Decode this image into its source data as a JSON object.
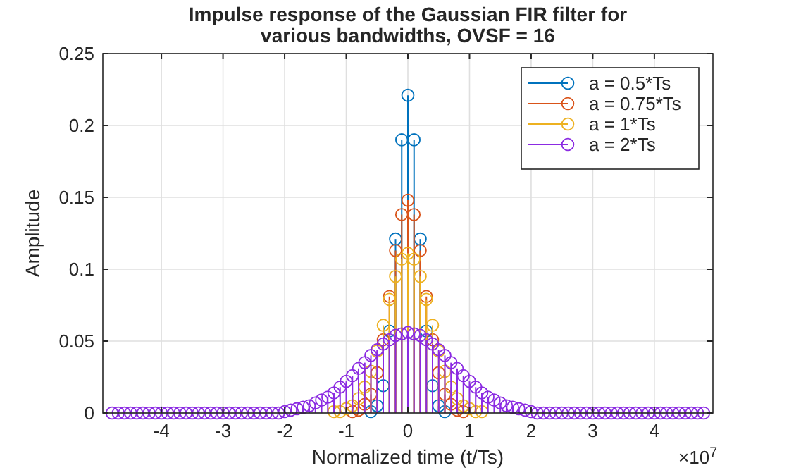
{
  "chart_data": {
    "type": "lollipop",
    "title": "Impulse response of the Gaussian FIR filter for various bandwidths, OVSF = 16",
    "xlabel": "Normalized time (t/Ts)",
    "ylabel": "Amplitude",
    "annotations": [
      "×10$^{7}$"
    ],
    "x": [
      -4.8,
      -4.7,
      -4.6,
      -4.5,
      -4.4,
      -4.3,
      -4.2,
      -4.1,
      -4,
      -3.9,
      -3.8,
      -3.7,
      -3.6,
      -3.5,
      -3.4,
      -3.3,
      -3.2,
      -3.1,
      -3,
      -2.9,
      -2.8,
      -2.7,
      -2.6,
      -2.5,
      -2.4,
      -2.3,
      -2.2,
      -2.1,
      -2,
      -1.9,
      -1.8,
      -1.7,
      -1.6,
      -1.5,
      -1.4,
      -1.3,
      -1.2,
      -1.1,
      -1,
      -0.9,
      -0.8,
      -0.7,
      -0.6,
      -0.5,
      -0.4,
      -0.3,
      -0.2,
      -0.1,
      0,
      0.1,
      0.2,
      0.3,
      0.4,
      0.5,
      0.6,
      0.7,
      0.8,
      0.9,
      1,
      1.1,
      1.2,
      1.3,
      1.4,
      1.5,
      1.6,
      1.7,
      1.8,
      1.9,
      2,
      2.1,
      2.2,
      2.3,
      2.4,
      2.5,
      2.6,
      2.7,
      2.8,
      2.9,
      3,
      3.1,
      3.2,
      3.3,
      3.4,
      3.5,
      3.6,
      3.7,
      3.8,
      3.9,
      4,
      4.1,
      4.2,
      4.3,
      4.4,
      4.5,
      4.6,
      4.7,
      4.8
    ],
    "series": [
      {
        "name": "a = 0.5*Ts",
        "color": "#0072bd",
        "values": [
          null,
          null,
          null,
          null,
          null,
          null,
          null,
          null,
          null,
          null,
          null,
          null,
          null,
          null,
          null,
          null,
          null,
          null,
          null,
          null,
          null,
          null,
          null,
          null,
          null,
          null,
          null,
          null,
          null,
          null,
          null,
          null,
          null,
          null,
          null,
          null,
          null,
          null,
          null,
          null,
          null,
          null,
          0.001,
          0.005,
          0.019,
          0.057,
          0.121,
          0.19,
          0.221,
          0.19,
          0.121,
          0.057,
          0.019,
          0.005,
          0.001,
          null,
          null,
          null,
          null,
          null,
          null,
          null,
          null,
          null,
          null,
          null,
          null,
          null,
          null,
          null,
          null,
          null,
          null,
          null,
          null,
          null,
          null,
          null,
          null,
          null,
          null,
          null,
          null,
          null,
          null,
          null,
          null,
          null,
          null,
          null,
          null,
          null,
          null,
          null,
          null,
          null,
          null
        ]
      },
      {
        "name": "a = 0.75*Ts",
        "color": "#d95319",
        "values": [
          null,
          null,
          null,
          null,
          null,
          null,
          null,
          null,
          null,
          null,
          null,
          null,
          null,
          null,
          null,
          null,
          null,
          null,
          null,
          null,
          null,
          null,
          null,
          null,
          null,
          null,
          null,
          null,
          null,
          null,
          null,
          null,
          null,
          null,
          null,
          null,
          null,
          null,
          null,
          0.001,
          0.002,
          0.006,
          0.013,
          0.028,
          0.051,
          0.081,
          0.113,
          0.138,
          0.148,
          0.138,
          0.113,
          0.081,
          0.051,
          0.028,
          0.013,
          0.006,
          0.002,
          0.001,
          null,
          null,
          null,
          null,
          null,
          null,
          null,
          null,
          null,
          null,
          null,
          null,
          null,
          null,
          null,
          null,
          null,
          null,
          null,
          null,
          null,
          null,
          null,
          null,
          null,
          null,
          null,
          null,
          null,
          null,
          null,
          null,
          null,
          null,
          null,
          null,
          null,
          null,
          null
        ]
      },
      {
        "name": "a = 1*Ts",
        "color": "#edb120",
        "values": [
          null,
          null,
          null,
          null,
          null,
          null,
          null,
          null,
          null,
          null,
          null,
          null,
          null,
          null,
          null,
          null,
          null,
          null,
          null,
          null,
          null,
          null,
          null,
          null,
          null,
          null,
          null,
          null,
          null,
          null,
          null,
          null,
          null,
          null,
          null,
          null,
          0.001,
          0.001,
          0.003,
          0.005,
          0.01,
          0.018,
          0.029,
          0.043,
          0.061,
          0.079,
          0.095,
          0.107,
          0.111,
          0.107,
          0.095,
          0.079,
          0.061,
          0.043,
          0.029,
          0.018,
          0.01,
          0.005,
          0.003,
          0.001,
          0.001,
          null,
          null,
          null,
          null,
          null,
          null,
          null,
          null,
          null,
          null,
          null,
          null,
          null,
          null,
          null,
          null,
          null,
          null,
          null,
          null,
          null,
          null,
          null,
          null,
          null,
          null,
          null,
          null,
          null,
          null,
          null,
          null,
          null,
          null,
          null,
          null
        ]
      },
      {
        "name": "a = 2*Ts",
        "color": "#8b2be2",
        "values": [
          0,
          0,
          0,
          0,
          0,
          0,
          0,
          0,
          0,
          0,
          0,
          0,
          0,
          0,
          0,
          0,
          0,
          0,
          0,
          0,
          0,
          0,
          0,
          0,
          0,
          0,
          0,
          0,
          0.001,
          0.002,
          0.003,
          0.004,
          0.005,
          0.007,
          0.009,
          0.011,
          0.014,
          0.018,
          0.022,
          0.026,
          0.031,
          0.035,
          0.04,
          0.044,
          0.048,
          0.051,
          0.054,
          0.055,
          0.056,
          0.055,
          0.054,
          0.051,
          0.048,
          0.044,
          0.04,
          0.035,
          0.031,
          0.026,
          0.022,
          0.018,
          0.014,
          0.011,
          0.009,
          0.007,
          0.005,
          0.004,
          0.003,
          0.002,
          0.001,
          0,
          0,
          0,
          0,
          0,
          0,
          0,
          0,
          0,
          0,
          0,
          0,
          0,
          0,
          0,
          0,
          0,
          0,
          0,
          0,
          0,
          0,
          0,
          0,
          0,
          0,
          0,
          0
        ]
      }
    ],
    "xlim": [
      -4.95,
      4.95
    ],
    "xticks": [
      -4,
      -3,
      -2,
      -1,
      0,
      1,
      2,
      3,
      4
    ],
    "ylim": [
      0,
      0.25
    ],
    "yticks": [
      0,
      0.05,
      0.1,
      0.15,
      0.2,
      0.25
    ],
    "grid": true,
    "legend": "top right",
    "marker": "circle"
  }
}
